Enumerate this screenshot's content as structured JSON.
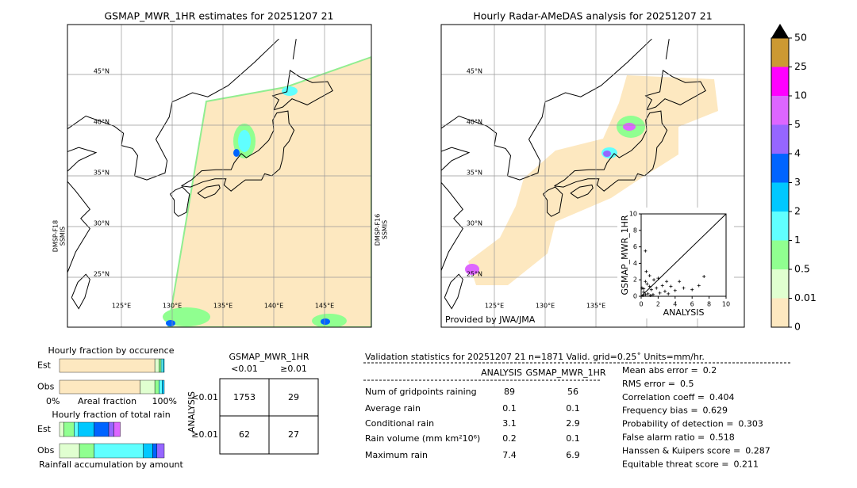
{
  "left_map": {
    "title": "GSMAP_MWR_1HR estimates for 20251207 21",
    "lat_labels": [
      "45°N",
      "40°N",
      "35°N",
      "30°N",
      "25°N"
    ],
    "lon_labels": [
      "125°E",
      "130°E",
      "135°E",
      "140°E",
      "145°E"
    ],
    "left_sat": [
      "DMSP-F18",
      "SSMIS"
    ],
    "right_sat": [
      "DMSP-F16",
      "SSMIS"
    ]
  },
  "right_map": {
    "title": "Hourly Radar-AMeDAS analysis for 20251207 21",
    "lat_labels": [
      "45°N",
      "40°N",
      "35°N",
      "30°N",
      "25°N"
    ],
    "lon_labels": [
      "125°E",
      "130°E",
      "135°E"
    ],
    "credit": "Provided by JWA/JMA"
  },
  "colorbar": {
    "ticks": [
      0,
      0.01,
      0.5,
      1,
      2,
      3,
      4,
      5,
      10,
      25,
      50
    ],
    "colors": [
      "#fde8c0",
      "#e0ffd0",
      "#90ff90",
      "#60ffff",
      "#00c8ff",
      "#0064ff",
      "#9666ff",
      "#dd66ff",
      "#ff00ff",
      "#cc9933"
    ],
    "over_color": "#000000"
  },
  "scatter": {
    "type": "scatter",
    "xlabel": "ANALYSIS",
    "ylabel": "GSMAP_MWR_1HR",
    "xlim": [
      0,
      10
    ],
    "ylim": [
      0,
      10
    ],
    "xticks": [
      0,
      2,
      4,
      6,
      8,
      10
    ],
    "yticks": [
      0,
      2,
      4,
      6,
      8,
      10
    ],
    "x": [
      1,
      0.5,
      1.5,
      2,
      2.5,
      3,
      3.5,
      4,
      4.5,
      5,
      6,
      6.8,
      7.4,
      0.3,
      0.8,
      1.2,
      1.8,
      0.2,
      0.5,
      2.2,
      2.8,
      3.2,
      1,
      1.4,
      0.1,
      0.6,
      0.5,
      0.3,
      1.1,
      0.7
    ],
    "y": [
      2.5,
      1.8,
      2,
      2.2,
      1.3,
      1.8,
      1.2,
      0.7,
      1.8,
      1,
      0.8,
      1.3,
      2.4,
      0.5,
      0.3,
      0.8,
      1,
      0.1,
      0.2,
      0.4,
      0.6,
      0.3,
      1.2,
      0.2,
      1,
      3,
      5.5,
      0.9,
      0.1,
      1.5
    ]
  },
  "occurrence": {
    "title": "Hourly fraction by occurence",
    "rows": [
      "Est",
      "Obs"
    ],
    "xlabel_left": "0%",
    "xlabel": "Areal fraction",
    "xlabel_right": "100%",
    "colors": [
      "#fde8c0",
      "#e0ffd0",
      "#90ff90",
      "#60ffff",
      "#00c8ff"
    ],
    "values": [
      [
        0.91,
        0.04,
        0.02,
        0.02,
        0.01
      ],
      [
        0.77,
        0.14,
        0.04,
        0.03,
        0.02
      ]
    ]
  },
  "total_rain": {
    "title": "Hourly fraction of total rain",
    "rows": [
      "Est",
      "Obs"
    ],
    "xlabel": "Rainfall accumulation by amount",
    "colors": [
      "#e0ffd0",
      "#90ff90",
      "#60ffff",
      "#00c8ff",
      "#0064ff",
      "#9666ff",
      "#dd66ff"
    ],
    "values": [
      [
        0.04,
        0.1,
        0.04,
        0.15,
        0.14,
        0.05,
        0.06
      ],
      [
        0.19,
        0.14,
        0.47,
        0.09,
        0.04,
        0.07,
        0
      ]
    ]
  },
  "contingency": {
    "title": "GSMAP_MWR_1HR",
    "col_headers": [
      "<0.01",
      "≥0.01"
    ],
    "row_title": "ANALYSIS",
    "row_headers": [
      "<0.01",
      "≥0.01"
    ],
    "cells": [
      [
        1753,
        29
      ],
      [
        62,
        27
      ]
    ]
  },
  "validation": {
    "header": "Validation statistics for 20251207 21  n=1871 Valid. grid=0.25˚ Units=mm/hr.",
    "columns": [
      "ANALYSIS",
      "GSMAP_MWR_1HR"
    ],
    "rows": [
      {
        "label": "Num of gridpoints raining",
        "values": [
          89,
          56
        ]
      },
      {
        "label": "Average rain",
        "values": [
          0.1,
          0.1
        ]
      },
      {
        "label": "Conditional rain",
        "values": [
          3.1,
          2.9
        ]
      },
      {
        "label": "Rain volume (mm km²10⁶)",
        "values": [
          0.2,
          0.1
        ]
      },
      {
        "label": "Maximum rain",
        "values": [
          7.4,
          6.9
        ]
      }
    ],
    "scores": [
      {
        "label": "Mean abs error =",
        "value": 0.2
      },
      {
        "label": "RMS error =",
        "value": 0.5
      },
      {
        "label": "Correlation coeff =",
        "value": 0.404
      },
      {
        "label": "Frequency bias =",
        "value": 0.629
      },
      {
        "label": "Probability of detection =",
        "value": 0.303
      },
      {
        "label": "False alarm ratio =",
        "value": 0.518
      },
      {
        "label": "Hanssen & Kuipers score =",
        "value": 0.287
      },
      {
        "label": "Equitable threat score =",
        "value": 0.211
      }
    ]
  }
}
